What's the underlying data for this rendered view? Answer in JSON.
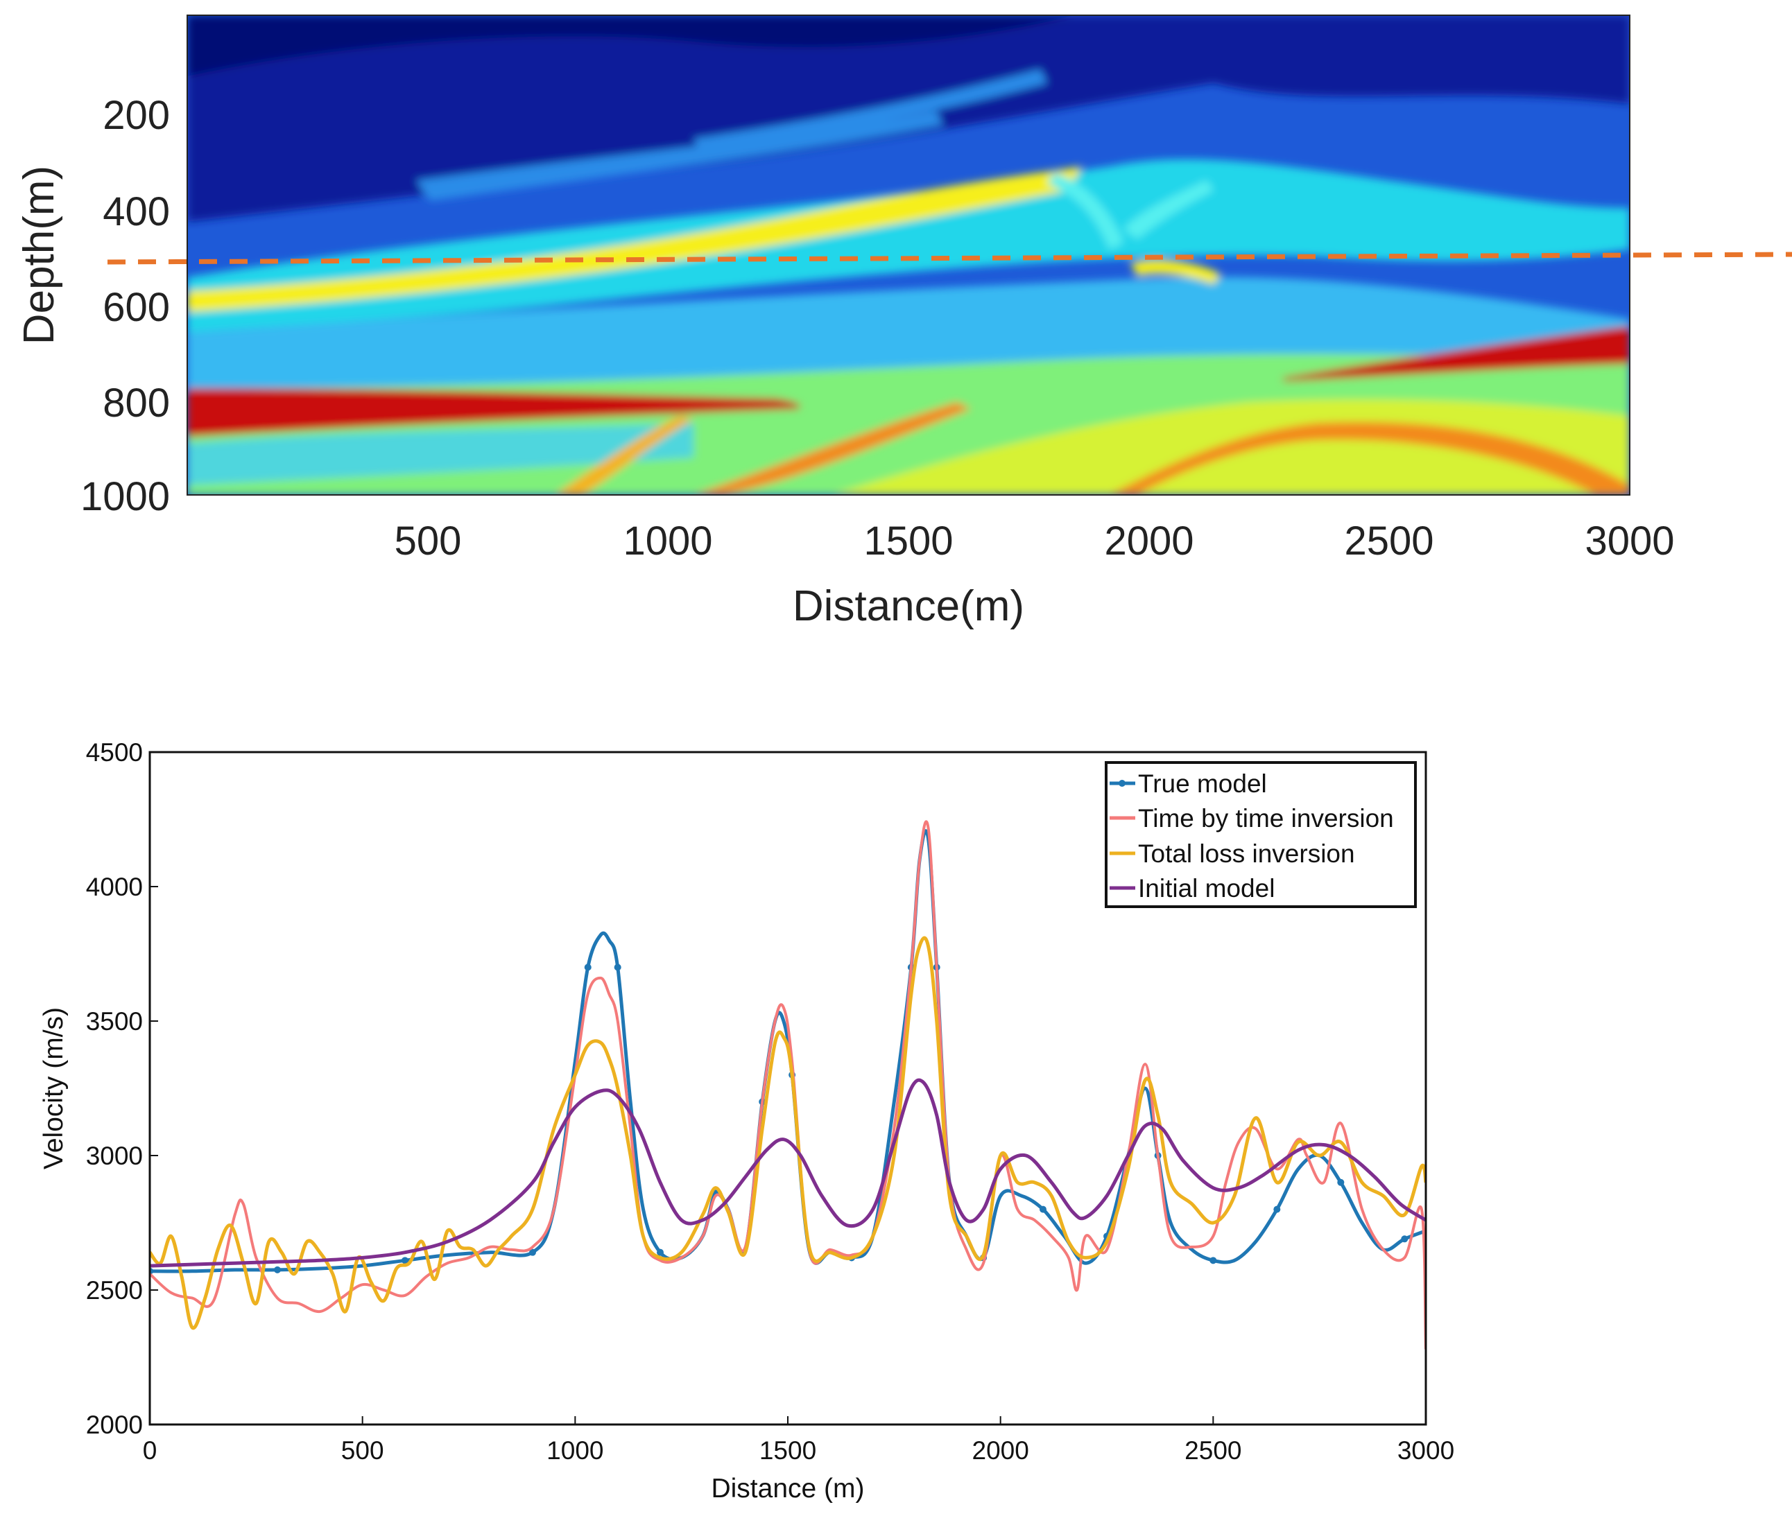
{
  "colors": {
    "true_model": "#1f77b4",
    "time_by_time": "#f47a7a",
    "total_loss": "#edb120",
    "initial_model": "#7e2f8e",
    "dashed_line": "#e8742a"
  },
  "chart_data": [
    {
      "type": "heatmap",
      "title": "",
      "xlabel": "Distance(m)",
      "ylabel": "Depth(m)",
      "xlim": [
        0,
        3000
      ],
      "ylim": [
        0,
        1000
      ],
      "y_reversed": true,
      "xticks": [
        "500",
        "1000",
        "1500",
        "2000",
        "2500",
        "3000"
      ],
      "yticks": [
        "200",
        "400",
        "600",
        "800",
        "1000"
      ],
      "colormap": "jet",
      "annotation": {
        "kind": "dashed-line",
        "depth_start": 515,
        "depth_end": 490,
        "description": "extraction depth"
      }
    },
    {
      "type": "line",
      "title": "",
      "xlabel": "Distance (m)",
      "ylabel": "Velocity (m/s)",
      "xlim": [
        0,
        3000
      ],
      "ylim": [
        2000,
        4500
      ],
      "xticks": [
        "0",
        "500",
        "1000",
        "1500",
        "2000",
        "2500",
        "3000"
      ],
      "yticks": [
        "2000",
        "2500",
        "3000",
        "3500",
        "4000",
        "4500"
      ],
      "legend_position": "top-right",
      "series": [
        {
          "name": "True model",
          "x": [
            0,
            100,
            200,
            300,
            400,
            500,
            600,
            700,
            800,
            900,
            950,
            1000,
            1030,
            1060,
            1080,
            1100,
            1130,
            1160,
            1200,
            1250,
            1300,
            1330,
            1360,
            1400,
            1440,
            1470,
            1490,
            1510,
            1550,
            1600,
            1650,
            1700,
            1750,
            1790,
            1810,
            1830,
            1850,
            1880,
            1920,
            1960,
            2000,
            2050,
            2100,
            2150,
            2200,
            2250,
            2300,
            2340,
            2370,
            2400,
            2450,
            2500,
            2550,
            2600,
            2650,
            2700,
            2750,
            2800,
            2850,
            2900,
            2950,
            3000
          ],
          "values": [
            2570,
            2570,
            2575,
            2575,
            2580,
            2590,
            2610,
            2630,
            2640,
            2640,
            2800,
            3350,
            3700,
            3820,
            3800,
            3700,
            3200,
            2800,
            2640,
            2620,
            2700,
            2860,
            2800,
            2650,
            3200,
            3500,
            3500,
            3300,
            2650,
            2640,
            2620,
            2700,
            3200,
            3700,
            4100,
            4180,
            3700,
            2900,
            2700,
            2620,
            2850,
            2850,
            2800,
            2700,
            2600,
            2700,
            3000,
            3250,
            3000,
            2750,
            2650,
            2610,
            2610,
            2680,
            2800,
            2950,
            3000,
            2900,
            2750,
            2650,
            2690,
            2720
          ]
        },
        {
          "name": "Time by time inversion",
          "x": [
            0,
            50,
            100,
            150,
            200,
            220,
            250,
            300,
            350,
            400,
            450,
            500,
            550,
            600,
            650,
            700,
            750,
            800,
            850,
            900,
            950,
            1000,
            1030,
            1060,
            1080,
            1100,
            1130,
            1160,
            1200,
            1250,
            1300,
            1330,
            1360,
            1400,
            1440,
            1470,
            1490,
            1510,
            1550,
            1600,
            1650,
            1700,
            1750,
            1790,
            1810,
            1830,
            1850,
            1880,
            1920,
            1960,
            2000,
            2040,
            2080,
            2120,
            2160,
            2180,
            2200,
            2250,
            2300,
            2340,
            2370,
            2400,
            2450,
            2500,
            2530,
            2560,
            2600,
            2650,
            2700,
            2720,
            2760,
            2800,
            2850,
            2900,
            2950,
            2990,
            3000
          ],
          "values": [
            2560,
            2490,
            2470,
            2460,
            2780,
            2820,
            2620,
            2470,
            2450,
            2420,
            2470,
            2520,
            2500,
            2480,
            2550,
            2600,
            2620,
            2660,
            2650,
            2660,
            2800,
            3300,
            3600,
            3660,
            3600,
            3500,
            3100,
            2700,
            2610,
            2620,
            2700,
            2850,
            2800,
            2660,
            3200,
            3500,
            3550,
            3350,
            2650,
            2650,
            2630,
            2700,
            3100,
            3700,
            4100,
            4220,
            3700,
            2900,
            2650,
            2600,
            3000,
            2800,
            2760,
            2700,
            2620,
            2500,
            2700,
            2650,
            3000,
            3340,
            3000,
            2700,
            2660,
            2700,
            2900,
            3050,
            3100,
            2950,
            3060,
            3000,
            2900,
            3120,
            2800,
            2650,
            2620,
            2800,
            2280
          ]
        },
        {
          "name": "Total loss inversion",
          "x": [
            0,
            25,
            50,
            75,
            100,
            130,
            160,
            190,
            220,
            250,
            280,
            310,
            340,
            370,
            400,
            430,
            460,
            490,
            520,
            550,
            580,
            610,
            640,
            670,
            700,
            730,
            760,
            790,
            820,
            850,
            900,
            950,
            1000,
            1030,
            1060,
            1080,
            1100,
            1130,
            1160,
            1200,
            1250,
            1300,
            1330,
            1360,
            1400,
            1440,
            1470,
            1490,
            1510,
            1550,
            1600,
            1650,
            1700,
            1750,
            1790,
            1810,
            1830,
            1850,
            1880,
            1920,
            1960,
            2000,
            2040,
            2080,
            2120,
            2160,
            2200,
            2250,
            2300,
            2340,
            2370,
            2400,
            2450,
            2500,
            2550,
            2600,
            2650,
            2700,
            2750,
            2800,
            2850,
            2900,
            2950,
            2990,
            3000
          ],
          "values": [
            2640,
            2600,
            2700,
            2550,
            2360,
            2470,
            2650,
            2740,
            2600,
            2450,
            2680,
            2640,
            2560,
            2680,
            2640,
            2560,
            2420,
            2620,
            2530,
            2460,
            2580,
            2600,
            2680,
            2540,
            2720,
            2660,
            2650,
            2590,
            2650,
            2700,
            2800,
            3100,
            3300,
            3410,
            3420,
            3360,
            3250,
            3000,
            2700,
            2620,
            2640,
            2780,
            2880,
            2790,
            2640,
            3100,
            3420,
            3440,
            3300,
            2660,
            2640,
            2620,
            2700,
            3000,
            3600,
            3780,
            3780,
            3500,
            2850,
            2700,
            2630,
            3000,
            2900,
            2900,
            2850,
            2680,
            2620,
            2680,
            2950,
            3280,
            3150,
            2900,
            2820,
            2750,
            2850,
            3140,
            2900,
            3050,
            3000,
            3050,
            2900,
            2850,
            2780,
            2960,
            2900
          ]
        },
        {
          "name": "Initial model",
          "x": [
            0,
            100,
            200,
            300,
            400,
            500,
            600,
            700,
            800,
            900,
            950,
            1000,
            1060,
            1100,
            1150,
            1200,
            1250,
            1300,
            1350,
            1400,
            1450,
            1490,
            1530,
            1580,
            1640,
            1700,
            1750,
            1790,
            1820,
            1850,
            1880,
            1920,
            1960,
            2000,
            2060,
            2120,
            2170,
            2200,
            2250,
            2300,
            2340,
            2380,
            2430,
            2500,
            2560,
            2620,
            2700,
            2760,
            2820,
            2880,
            2940,
            3000
          ],
          "values": [
            2590,
            2595,
            2600,
            2605,
            2610,
            2620,
            2640,
            2680,
            2760,
            2900,
            3050,
            3180,
            3240,
            3220,
            3100,
            2900,
            2760,
            2760,
            2820,
            2920,
            3020,
            3060,
            3000,
            2850,
            2740,
            2800,
            3050,
            3250,
            3270,
            3150,
            2900,
            2760,
            2800,
            2950,
            3000,
            2900,
            2790,
            2770,
            2850,
            3000,
            3110,
            3100,
            2980,
            2880,
            2880,
            2930,
            3020,
            3040,
            3000,
            2920,
            2820,
            2760
          ]
        }
      ]
    }
  ]
}
